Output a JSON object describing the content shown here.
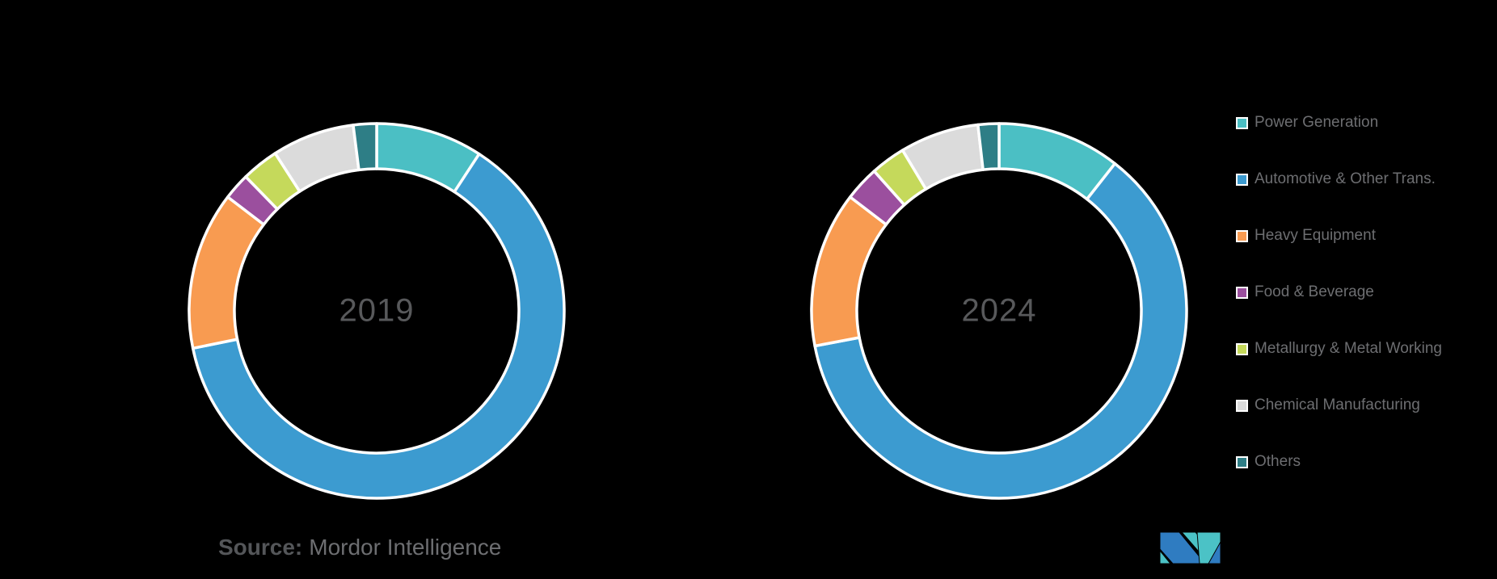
{
  "figure": {
    "background_color": "#000000",
    "separator_color": "#FFFFFF",
    "center_label_color": "#58595B",
    "legend_text_color": "#6D6E71"
  },
  "chart_data": [
    {
      "type": "pie",
      "subtype": "donut",
      "center_label": "2019",
      "start_angle": "12-oclock",
      "direction": "clockwise",
      "legend_position": "right",
      "unit": "%",
      "note": "No numeric data labels shown; percentages estimated from arc angles",
      "categories": [
        "Power Generation",
        "Automotive & Other Trans.",
        "Heavy Equipment",
        "Food & Beverage",
        "Metallurgy & Metal Working",
        "Chemical Manufacturing",
        "Others"
      ],
      "values": [
        9.2,
        62.6,
        13.6,
        2.3,
        3.2,
        7.1,
        2.0
      ]
    },
    {
      "type": "pie",
      "subtype": "donut",
      "center_label": "2024",
      "start_angle": "12-oclock",
      "direction": "clockwise",
      "legend_position": "right",
      "unit": "%",
      "note": "No numeric data labels shown; percentages estimated from arc angles",
      "categories": [
        "Power Generation",
        "Automotive & Other Trans.",
        "Heavy Equipment",
        "Food & Beverage",
        "Metallurgy & Metal Working",
        "Chemical Manufacturing",
        "Others"
      ],
      "values": [
        10.6,
        61.4,
        13.4,
        3.0,
        3.0,
        6.8,
        1.8
      ]
    }
  ],
  "legend": {
    "position": "right",
    "items": [
      {
        "label": "Power Generation",
        "color": "#4BBFC4",
        "slug": "power-generation"
      },
      {
        "label": "Automotive & Other Trans.",
        "color": "#3C9BD0",
        "slug": "automotive-other-trans"
      },
      {
        "label": "Heavy Equipment",
        "color": "#F89B51",
        "slug": "heavy-equipment"
      },
      {
        "label": "Food & Beverage",
        "color": "#9B4F9E",
        "slug": "food-beverage"
      },
      {
        "label": "Metallurgy & Metal Working",
        "color": "#C5D95B",
        "slug": "metallurgy-metal-working"
      },
      {
        "label": "Chemical Manufacturing",
        "color": "#DBDBDB",
        "slug": "chemical-manufacturing"
      },
      {
        "label": "Others",
        "color": "#2E7E86",
        "slug": "others"
      }
    ]
  },
  "source": {
    "prefix": "Source:",
    "name": "Mordor Intelligence"
  },
  "logo": {
    "name": "mordor-intelligence-logo",
    "blue": "#2F7CC1",
    "teal": "#4BC2C6"
  }
}
